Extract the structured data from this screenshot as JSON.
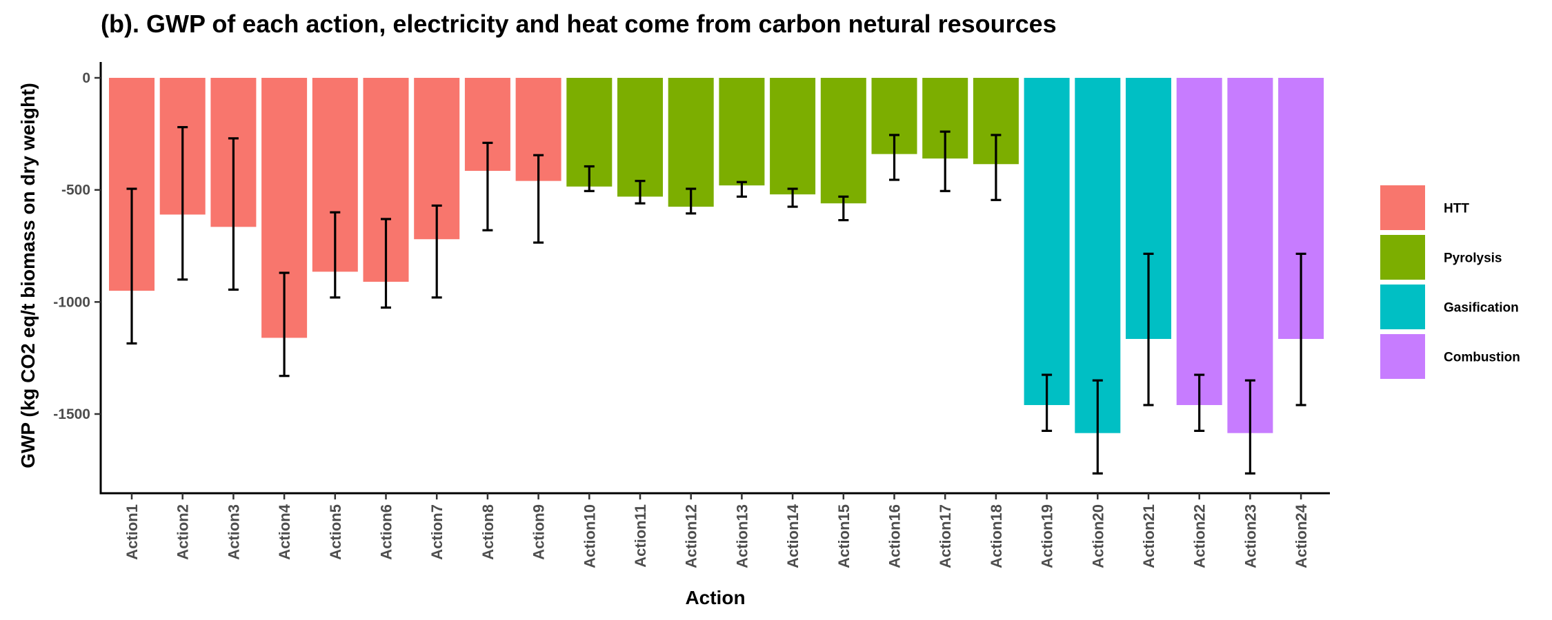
{
  "chart_data": {
    "type": "bar",
    "title": "(b). GWP of each action, electricity and heat come from carbon netural resources",
    "xlabel": "Action",
    "ylabel": "GWP (kg CO2 eq/t biomass on dry weight)",
    "ylim": [
      -1850,
      0
    ],
    "yticks": [
      0,
      -500,
      -1000,
      -1500
    ],
    "categories": [
      "Action1",
      "Action2",
      "Action3",
      "Action4",
      "Action5",
      "Action6",
      "Action7",
      "Action8",
      "Action9",
      "Action10",
      "Action11",
      "Action12",
      "Action13",
      "Action14",
      "Action15",
      "Action16",
      "Action17",
      "Action18",
      "Action19",
      "Action20",
      "Action21",
      "Action22",
      "Action23",
      "Action24"
    ],
    "values": [
      -950,
      -610,
      -665,
      -1160,
      -865,
      -910,
      -720,
      -415,
      -460,
      -485,
      -530,
      -575,
      -480,
      -520,
      -560,
      -340,
      -360,
      -385,
      -1460,
      -1585,
      -1165,
      -1460,
      -1585,
      -1165
    ],
    "error_low": [
      -1185,
      -900,
      -945,
      -1330,
      -980,
      -1025,
      -980,
      -680,
      -735,
      -505,
      -560,
      -605,
      -530,
      -575,
      -635,
      -455,
      -505,
      -545,
      -1575,
      -1765,
      -1460,
      -1575,
      -1765,
      -1460
    ],
    "error_high": [
      -495,
      -220,
      -270,
      -870,
      -600,
      -630,
      -570,
      -290,
      -345,
      -395,
      -460,
      -495,
      -465,
      -495,
      -530,
      -255,
      -240,
      -255,
      -1325,
      -1350,
      -785,
      -1325,
      -1350,
      -785
    ],
    "groups": [
      "HTT",
      "HTT",
      "HTT",
      "HTT",
      "HTT",
      "HTT",
      "HTT",
      "HTT",
      "HTT",
      "Pyrolysis",
      "Pyrolysis",
      "Pyrolysis",
      "Pyrolysis",
      "Pyrolysis",
      "Pyrolysis",
      "Pyrolysis",
      "Pyrolysis",
      "Pyrolysis",
      "Gasification",
      "Gasification",
      "Gasification",
      "Combustion",
      "Combustion",
      "Combustion"
    ],
    "legend": [
      {
        "name": "HTT",
        "color": "#F8766D"
      },
      {
        "name": "Pyrolysis",
        "color": "#7CAE00"
      },
      {
        "name": "Gasification",
        "color": "#00BFC4"
      },
      {
        "name": "Combustion",
        "color": "#C77CFF"
      }
    ],
    "legend_position": "right",
    "grid": false
  }
}
